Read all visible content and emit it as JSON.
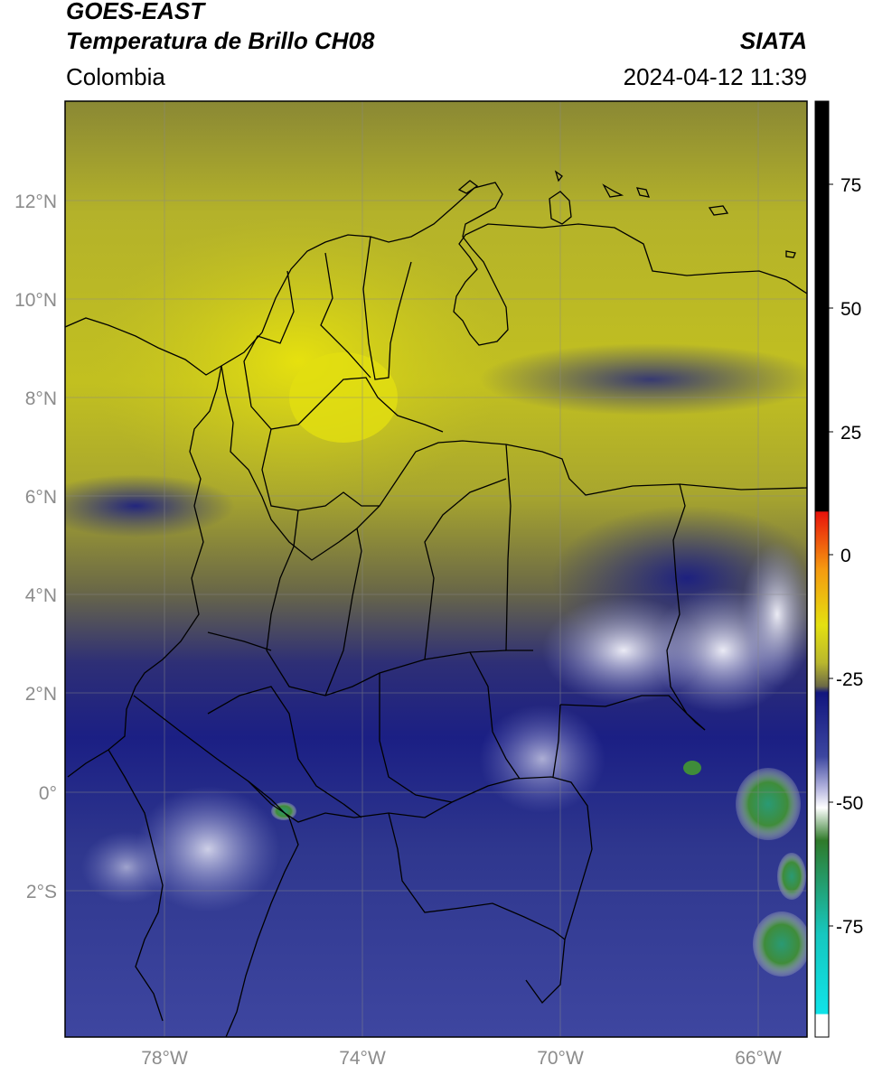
{
  "header": {
    "satellite": "GOES-EAST",
    "product": "Temperatura de Brillo CH08",
    "region": "Colombia",
    "agency": "SIATA",
    "datetime": "2024-04-12 11:39"
  },
  "map": {
    "lat_ticks": [
      "12°N",
      "10°N",
      "8°N",
      "6°N",
      "4°N",
      "2°N",
      "0°",
      "2°S"
    ],
    "lon_ticks": [
      "78°W",
      "74°W",
      "70°W",
      "66°W"
    ],
    "lon_range": [
      -80,
      -65
    ],
    "lat_range": [
      -4.7,
      14.3
    ]
  },
  "colorbar": {
    "ticks": [
      "75",
      "50",
      "25",
      "0",
      "-25",
      "-50",
      "-75"
    ],
    "colors": {
      "black": "#000000",
      "red": "#e8130b",
      "orange": "#f59a10",
      "yellow": "#e4e010",
      "olive": "#7c7a3a",
      "navy": "#12167e",
      "blue": "#3c46a0",
      "lilac": "#b8b8e0",
      "white": "#ffffff",
      "green": "#2f7a2a",
      "teal": "#16c7bf",
      "cyan": "#10e3e8"
    }
  }
}
